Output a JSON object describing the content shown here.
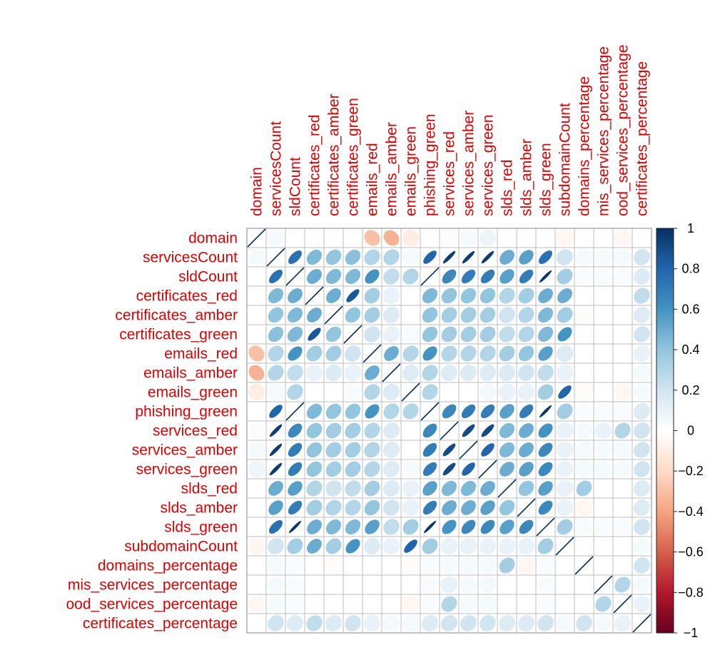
{
  "chart_data": {
    "type": "heatmap",
    "variables": [
      "domain",
      "servicesCount",
      "sldCount",
      "certificates_red",
      "certificates_amber",
      "certificates_green",
      "emails_red",
      "emails_amber",
      "emails_green",
      "phishing_green",
      "services_red",
      "services_amber",
      "services_green",
      "slds_red",
      "slds_amber",
      "slds_green",
      "subdomainCount",
      "domains_percentage",
      "mis_services_percentage",
      "ood_services_percentage",
      "certificates_percentage"
    ],
    "matrix": [
      [
        1.0,
        0.05,
        0.0,
        0.0,
        0.0,
        0.0,
        -0.3,
        -0.35,
        -0.1,
        0.0,
        0.02,
        0.05,
        0.08,
        0.0,
        0.0,
        0.0,
        -0.05,
        0.0,
        0.0,
        -0.05,
        0.0
      ],
      [
        0.05,
        1.0,
        0.75,
        0.45,
        0.4,
        0.42,
        0.3,
        0.3,
        0.05,
        0.8,
        0.95,
        0.95,
        0.95,
        0.5,
        0.55,
        0.75,
        0.2,
        0.05,
        0.05,
        0.05,
        0.2
      ],
      [
        0.0,
        0.75,
        1.0,
        0.5,
        0.45,
        0.45,
        0.6,
        0.25,
        0.3,
        1.0,
        0.65,
        0.7,
        0.7,
        0.55,
        0.7,
        0.97,
        0.35,
        0.03,
        0.03,
        0.03,
        0.15
      ],
      [
        0.0,
        0.45,
        0.5,
        1.0,
        0.5,
        0.85,
        0.35,
        0.1,
        0.0,
        0.45,
        0.4,
        0.4,
        0.4,
        0.3,
        0.35,
        0.5,
        0.5,
        0.0,
        0.0,
        0.0,
        0.25
      ],
      [
        0.0,
        0.4,
        0.45,
        0.5,
        1.0,
        0.4,
        0.35,
        0.15,
        0.0,
        0.4,
        0.35,
        0.35,
        0.35,
        0.2,
        0.3,
        0.45,
        0.35,
        -0.02,
        0.0,
        0.0,
        0.15
      ],
      [
        0.0,
        0.42,
        0.45,
        0.85,
        0.4,
        1.0,
        0.2,
        0.1,
        0.03,
        0.4,
        0.35,
        0.35,
        0.35,
        0.25,
        0.3,
        0.45,
        0.6,
        0.0,
        0.0,
        0.0,
        0.2
      ],
      [
        -0.3,
        0.3,
        0.6,
        0.35,
        0.35,
        0.2,
        1.0,
        0.5,
        0.3,
        0.6,
        0.3,
        0.3,
        0.3,
        0.35,
        0.4,
        0.55,
        0.15,
        0.0,
        0.0,
        0.0,
        0.1
      ],
      [
        -0.35,
        0.3,
        0.25,
        0.1,
        0.15,
        0.1,
        0.5,
        1.0,
        0.15,
        0.3,
        0.15,
        0.15,
        0.15,
        0.15,
        0.2,
        0.25,
        0.1,
        0.0,
        0.0,
        0.0,
        0.05
      ],
      [
        -0.1,
        0.05,
        0.3,
        0.0,
        0.0,
        0.03,
        0.3,
        0.15,
        1.0,
        0.3,
        0.0,
        0.0,
        0.05,
        0.1,
        0.1,
        0.35,
        0.8,
        -0.02,
        0.0,
        -0.05,
        0.05
      ],
      [
        0.0,
        0.8,
        1.0,
        0.45,
        0.4,
        0.4,
        0.6,
        0.3,
        0.3,
        1.0,
        0.65,
        0.7,
        0.7,
        0.55,
        0.7,
        0.97,
        0.35,
        0.03,
        0.03,
        0.03,
        0.15
      ],
      [
        0.02,
        0.95,
        0.65,
        0.4,
        0.35,
        0.35,
        0.3,
        0.15,
        0.0,
        0.65,
        1.0,
        0.9,
        0.9,
        0.45,
        0.5,
        0.6,
        0.1,
        0.05,
        0.1,
        0.3,
        0.2
      ],
      [
        0.05,
        0.95,
        0.7,
        0.4,
        0.35,
        0.35,
        0.3,
        0.15,
        0.0,
        0.7,
        0.9,
        1.0,
        0.8,
        0.45,
        0.5,
        0.65,
        0.1,
        0.05,
        0.05,
        0.05,
        0.2
      ],
      [
        0.08,
        0.95,
        0.7,
        0.4,
        0.35,
        0.35,
        0.3,
        0.15,
        0.05,
        0.7,
        0.9,
        0.8,
        1.0,
        0.5,
        0.55,
        0.65,
        0.1,
        0.05,
        0.05,
        0.05,
        0.2
      ],
      [
        0.0,
        0.5,
        0.55,
        0.3,
        0.2,
        0.25,
        0.35,
        0.15,
        0.1,
        0.55,
        0.45,
        0.45,
        0.5,
        1.0,
        0.4,
        0.55,
        0.1,
        0.35,
        0.0,
        0.0,
        0.15
      ],
      [
        0.0,
        0.55,
        0.7,
        0.35,
        0.3,
        0.3,
        0.4,
        0.2,
        0.1,
        0.7,
        0.5,
        0.5,
        0.55,
        0.4,
        1.0,
        0.65,
        0.1,
        -0.05,
        0.0,
        0.0,
        0.15
      ],
      [
        0.0,
        0.75,
        0.97,
        0.5,
        0.45,
        0.45,
        0.55,
        0.25,
        0.35,
        0.97,
        0.6,
        0.65,
        0.65,
        0.55,
        0.65,
        1.0,
        0.35,
        0.03,
        0.03,
        0.03,
        0.2
      ],
      [
        -0.05,
        0.2,
        0.35,
        0.5,
        0.35,
        0.6,
        0.15,
        0.1,
        0.8,
        0.35,
        0.1,
        0.1,
        0.1,
        0.1,
        0.1,
        0.35,
        1.0,
        0.0,
        0.0,
        0.0,
        0.05
      ],
      [
        0.0,
        0.05,
        0.03,
        0.0,
        -0.02,
        0.0,
        0.0,
        0.0,
        -0.02,
        0.03,
        0.05,
        0.05,
        0.05,
        0.35,
        -0.05,
        0.03,
        0.0,
        1.0,
        0.0,
        0.0,
        0.2
      ],
      [
        0.0,
        0.05,
        0.03,
        0.0,
        0.0,
        0.0,
        0.0,
        0.0,
        0.0,
        0.03,
        0.1,
        0.05,
        0.05,
        0.0,
        0.0,
        0.03,
        0.0,
        0.0,
        1.0,
        0.3,
        0.05
      ],
      [
        -0.05,
        0.05,
        0.03,
        0.0,
        0.0,
        0.0,
        0.0,
        0.0,
        -0.05,
        0.03,
        0.3,
        0.05,
        0.05,
        0.0,
        0.0,
        0.03,
        0.0,
        0.0,
        0.3,
        1.0,
        0.1
      ],
      [
        0.0,
        0.2,
        0.15,
        0.25,
        0.15,
        0.2,
        0.1,
        0.05,
        0.05,
        0.15,
        0.2,
        0.2,
        0.2,
        0.15,
        0.15,
        0.2,
        0.05,
        0.2,
        0.05,
        0.1,
        1.0
      ]
    ],
    "colorbar": {
      "range": [
        -1,
        1
      ],
      "ticks": [
        "1",
        "0.8",
        "0.6",
        "0.4",
        "0.2",
        "0",
        "−0.2",
        "−0.4",
        "−0.6",
        "−0.8",
        "−1"
      ],
      "colors": [
        "#053061",
        "#2166ac",
        "#4393c3",
        "#92c5de",
        "#d1e5f0",
        "#ffffff",
        "#fddbc7",
        "#f4a582",
        "#d6604d",
        "#b2182b",
        "#67001f"
      ]
    },
    "label_color": "#e00000",
    "grid_color": "#bebebe",
    "glyph": "ellipse"
  }
}
